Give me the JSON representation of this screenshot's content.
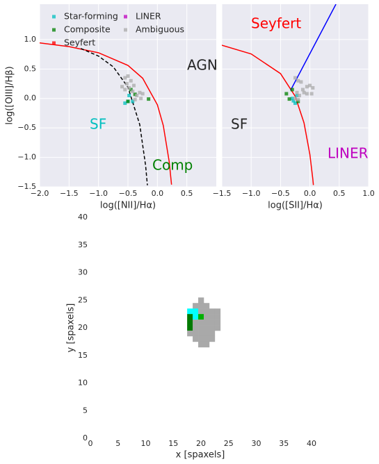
{
  "chart_data": [
    {
      "type": "scatter",
      "xlabel": "log([NII]/Hα)",
      "ylabel": "log([OIII]/Hβ)",
      "xlim": [
        -2.0,
        1.0
      ],
      "ylim": [
        -1.5,
        1.6
      ],
      "grid": true,
      "legend": "upper left",
      "xticks": [
        {
          "value": -2.0,
          "label": "−2.0"
        },
        {
          "value": -1.5,
          "label": "−1.5"
        },
        {
          "value": -1.0,
          "label": "−1.0"
        },
        {
          "value": -0.5,
          "label": "−0.5"
        },
        {
          "value": 0.0,
          "label": "0.0"
        },
        {
          "value": 0.5,
          "label": "0.5"
        }
      ],
      "yticks": [
        {
          "value": -1.5,
          "label": "−1.5"
        },
        {
          "value": -1.0,
          "label": "−1.0"
        },
        {
          "value": -0.5,
          "label": "−0.5"
        },
        {
          "value": 0.0,
          "label": "0.0"
        },
        {
          "value": 0.5,
          "label": "0.5"
        },
        {
          "value": 1.0,
          "label": "1.0"
        }
      ],
      "lines": [
        {
          "color": "#ff0000",
          "style": "solid",
          "x": [
            -2.0,
            -1.5,
            -1.0,
            -0.5,
            -0.25,
            0.0,
            0.1,
            0.2,
            0.24
          ],
          "y": [
            0.943,
            0.88,
            0.775,
            0.561,
            0.343,
            -0.108,
            -0.459,
            -1.069,
            -1.462
          ]
        },
        {
          "color": "#000000",
          "style": "dashed",
          "x": [
            -1.3,
            -1.0,
            -0.75,
            -0.5,
            -0.3,
            -0.2,
            -0.17
          ],
          "y": [
            0.848,
            0.719,
            0.537,
            0.191,
            -0.443,
            -1.14,
            -1.473
          ]
        }
      ],
      "annotations": [
        {
          "text": "AGN",
          "color": "#262626"
        },
        {
          "text": "SF",
          "color": "#00bfbf"
        },
        {
          "text": "Comp",
          "color": "#008000"
        }
      ],
      "series": [
        {
          "name": "Star-forming",
          "color": "#00bfbf",
          "x": [
            -0.55,
            -0.5,
            -0.48,
            -0.42
          ],
          "y": [
            -0.08,
            -0.05,
            0.05,
            -0.05
          ]
        },
        {
          "name": "Composite",
          "color": "#008000",
          "x": [
            -0.38,
            -0.15,
            -0.45,
            -0.5
          ],
          "y": [
            0.07,
            -0.01,
            0.15,
            -0.05
          ]
        },
        {
          "name": "Seyfert",
          "color": "#ff0000",
          "x": [],
          "y": []
        },
        {
          "name": "LINER",
          "color": "#bf00bf",
          "x": [],
          "y": []
        },
        {
          "name": "Ambiguous",
          "color": "#a9a9a9",
          "x": [
            -0.55,
            -0.5,
            -0.45,
            -0.52,
            -0.6,
            -0.4,
            -0.3,
            -0.25,
            -0.35,
            -0.48,
            -0.42,
            -0.28,
            -0.38,
            -0.55
          ],
          "y": [
            0.35,
            0.38,
            0.3,
            0.25,
            0.2,
            0.22,
            0.1,
            0.08,
            0.05,
            0.18,
            0.12,
            0.0,
            -0.02,
            0.15
          ]
        }
      ]
    },
    {
      "type": "scatter",
      "xlabel": "log([SII]/Hα)",
      "sharey": true,
      "xlim": [
        -1.5,
        1.0
      ],
      "grid": true,
      "xticks": [
        {
          "value": -1.5,
          "label": "−1.5"
        },
        {
          "value": -1.0,
          "label": "−1.0"
        },
        {
          "value": -0.5,
          "label": "−0.5"
        },
        {
          "value": 0.0,
          "label": "0.0"
        },
        {
          "value": 0.5,
          "label": "0.5"
        },
        {
          "value": 1.0,
          "label": "1.0"
        }
      ],
      "lines": [
        {
          "color": "#ff0000",
          "style": "solid",
          "x": [
            -1.5,
            -1.0,
            -0.5,
            -0.25,
            -0.1,
            0.0,
            0.05,
            0.06
          ],
          "y": [
            0.904,
            0.755,
            0.422,
            0.037,
            -0.414,
            -0.95,
            -1.367,
            -1.469
          ]
        },
        {
          "color": "#0000ff",
          "style": "solid",
          "x": [
            -0.33,
            0.444
          ],
          "y": [
            0.136,
            1.6
          ]
        }
      ],
      "annotations": [
        {
          "text": "Seyfert",
          "color": "#ff0000"
        },
        {
          "text": "SF",
          "color": "#262626"
        },
        {
          "text": "LINER",
          "color": "#bf00bf"
        }
      ],
      "series": [
        {
          "color": "#00bfbf",
          "x": [
            -0.25,
            -0.3,
            -0.22,
            -0.28
          ],
          "y": [
            -0.08,
            0.0,
            0.05,
            -0.04
          ]
        },
        {
          "color": "#008000",
          "x": [
            -0.4,
            -0.35,
            -0.3,
            -0.2
          ],
          "y": [
            0.08,
            -0.01,
            0.15,
            -0.05
          ]
        },
        {
          "color": "#a9a9a9",
          "x": [
            -0.25,
            -0.2,
            -0.15,
            -0.05,
            0.0,
            0.05,
            -0.1,
            -0.05,
            0.03,
            -0.22,
            -0.18,
            -0.25,
            -0.2,
            -0.12
          ],
          "y": [
            0.35,
            0.3,
            0.28,
            0.2,
            0.22,
            0.18,
            0.1,
            0.08,
            0.08,
            0.1,
            0.05,
            0.0,
            -0.02,
            0.15
          ]
        }
      ]
    },
    {
      "type": "heatmap",
      "xlabel": "x [spaxels]",
      "ylabel": "y [spaxels]",
      "xlim": [
        0,
        40
      ],
      "ylim": [
        0,
        40
      ],
      "xticks": [
        0,
        5,
        10,
        15,
        20,
        25,
        30,
        35,
        40
      ],
      "yticks": [
        0,
        5,
        10,
        15,
        20,
        25,
        30,
        35,
        40
      ],
      "cells": {
        "x": [
          20,
          19,
          20,
          21,
          18,
          19,
          20,
          21,
          22,
          23,
          18,
          19,
          20,
          21,
          22,
          23,
          18,
          19,
          20,
          21,
          22,
          23,
          18,
          19,
          20,
          21,
          22,
          23,
          18,
          19,
          20,
          21,
          22,
          19,
          20,
          21,
          22,
          20,
          21
        ],
        "y": [
          25,
          24,
          24,
          24,
          23,
          23,
          23,
          23,
          23,
          23,
          22,
          22,
          22,
          22,
          22,
          22,
          21,
          21,
          21,
          21,
          21,
          21,
          20,
          20,
          20,
          20,
          20,
          20,
          19,
          19,
          19,
          19,
          19,
          18,
          18,
          18,
          18,
          17,
          17
        ],
        "color": [
          "#a9a9a9",
          "#a9a9a9",
          "#a9a9a9",
          "#a9a9a9",
          "#00ffff",
          "#00ffff",
          "#a9a9a9",
          "#a9a9a9",
          "#a9a9a9",
          "#a9a9a9",
          "#007a00",
          "#00ffff",
          "#00b000",
          "#a9a9a9",
          "#a9a9a9",
          "#a9a9a9",
          "#007a00",
          "#a9a9a9",
          "#a9a9a9",
          "#a9a9a9",
          "#a9a9a9",
          "#a9a9a9",
          "#007a00",
          "#a9a9a9",
          "#a9a9a9",
          "#a9a9a9",
          "#a9a9a9",
          "#a9a9a9",
          "#a9a9a9",
          "#a9a9a9",
          "#a9a9a9",
          "#a9a9a9",
          "#a9a9a9",
          "#a9a9a9",
          "#a9a9a9",
          "#a9a9a9",
          "#a9a9a9",
          "#a9a9a9",
          "#a9a9a9"
        ]
      }
    }
  ]
}
